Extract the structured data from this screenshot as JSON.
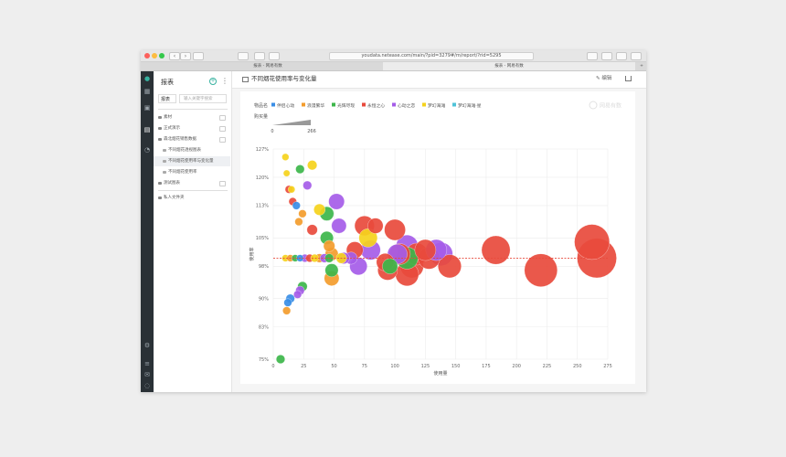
{
  "browser": {
    "url": "youdata.netease.com/main/?pid=3279#/m/report/?rid=5295",
    "tabs": [
      {
        "label": "报表 - 网易有数",
        "active": false
      },
      {
        "label": "报表 - 网易有数",
        "active": true
      }
    ]
  },
  "sidebar": {
    "title": "报表",
    "select_label": "报表",
    "search_placeholder": "输入关键字搜索",
    "items": [
      {
        "label": "素材",
        "type": "folder",
        "level": 0
      },
      {
        "label": "正式演示",
        "type": "folder",
        "level": 0
      },
      {
        "label": "森北烟花销售数据",
        "type": "folder",
        "level": 0
      },
      {
        "label": "不同烟花透视图表",
        "type": "report",
        "level": 1
      },
      {
        "label": "不同烟花使用率与变化量",
        "type": "report",
        "level": 1,
        "active": true
      },
      {
        "label": "不同烟花使用率",
        "type": "report",
        "level": 1
      },
      {
        "label": "测试图表",
        "type": "folder",
        "level": 0
      },
      {
        "label": "私人文件夹",
        "type": "folder",
        "level": 0
      }
    ]
  },
  "main": {
    "title": "不同烟花使用率与变化量",
    "edit_label": "编辑",
    "watermark": "网易有数"
  },
  "chart_data": {
    "type": "scatter",
    "legend_title": "物品名",
    "legend": [
      {
        "name": "伴侣心动",
        "color": "#3a8ee6"
      },
      {
        "name": "浪漫繁华",
        "color": "#f39c2c"
      },
      {
        "name": "光辉尽现",
        "color": "#3cb64a"
      },
      {
        "name": "永恒之心",
        "color": "#e84a3c"
      },
      {
        "name": "心动之恋",
        "color": "#a55ce8"
      },
      {
        "name": "梦幻海滩",
        "color": "#f5d21c"
      },
      {
        "name": "梦幻海滩·星",
        "color": "#4fc3d8"
      }
    ],
    "size_legend": {
      "label": "购买量",
      "min": 0,
      "max": 266
    },
    "xlabel": "使用量",
    "ylabel": "使用率",
    "xlim": [
      0,
      275
    ],
    "ylim": [
      75,
      127
    ],
    "x_ticks": [
      "0",
      "25",
      "50",
      "75",
      "100",
      "125",
      "150",
      "175",
      "200",
      "225",
      "250",
      "275"
    ],
    "y_ticks": [
      "75%",
      "83%",
      "90%",
      "98%",
      "105%",
      "113%",
      "120%",
      "127%"
    ],
    "reference_line": 100,
    "grid": true,
    "points": [
      {
        "s": 0,
        "x": 14,
        "y": 90,
        "r": 2
      },
      {
        "s": 0,
        "x": 12,
        "y": 89,
        "r": 1.8
      },
      {
        "s": 1,
        "x": 11,
        "y": 87,
        "r": 1.8
      },
      {
        "s": 2,
        "x": 6,
        "y": 75,
        "r": 2
      },
      {
        "s": 2,
        "x": 24,
        "y": 93,
        "r": 2.2
      },
      {
        "s": 4,
        "x": 22,
        "y": 92,
        "r": 2
      },
      {
        "s": 4,
        "x": 20,
        "y": 91,
        "r": 1.8
      },
      {
        "s": 3,
        "x": 13,
        "y": 117,
        "r": 1.8
      },
      {
        "s": 3,
        "x": 16,
        "y": 114,
        "r": 1.8
      },
      {
        "s": 5,
        "x": 10,
        "y": 125,
        "r": 1.6
      },
      {
        "s": 5,
        "x": 11,
        "y": 121,
        "r": 1.5
      },
      {
        "s": 5,
        "x": 32,
        "y": 123,
        "r": 2.2
      },
      {
        "s": 2,
        "x": 22,
        "y": 122,
        "r": 2
      },
      {
        "s": 5,
        "x": 15,
        "y": 117,
        "r": 1.6
      },
      {
        "s": 4,
        "x": 28,
        "y": 118,
        "r": 2
      },
      {
        "s": 1,
        "x": 24,
        "y": 111,
        "r": 1.8
      },
      {
        "s": 1,
        "x": 21,
        "y": 109,
        "r": 1.8
      },
      {
        "s": 0,
        "x": 19,
        "y": 113,
        "r": 1.8
      },
      {
        "s": 3,
        "x": 32,
        "y": 107,
        "r": 2.4
      },
      {
        "s": 5,
        "x": 38,
        "y": 112,
        "r": 2.6
      },
      {
        "s": 2,
        "x": 44,
        "y": 111,
        "r": 3.2
      },
      {
        "s": 4,
        "x": 52,
        "y": 114,
        "r": 3.6
      },
      {
        "s": 4,
        "x": 54,
        "y": 108,
        "r": 3.4
      },
      {
        "s": 2,
        "x": 44,
        "y": 105,
        "r": 3
      },
      {
        "s": 1,
        "x": 46,
        "y": 103,
        "r": 2.6
      },
      {
        "s": 1,
        "x": 48,
        "y": 101,
        "r": 3
      },
      {
        "s": 2,
        "x": 48,
        "y": 97,
        "r": 3
      },
      {
        "s": 1,
        "x": 48,
        "y": 95,
        "r": 3.4
      },
      {
        "s": 5,
        "x": 78,
        "y": 105,
        "r": 4.2
      },
      {
        "s": 4,
        "x": 80,
        "y": 102,
        "r": 4.5
      },
      {
        "s": 3,
        "x": 75,
        "y": 108,
        "r": 4.5
      },
      {
        "s": 3,
        "x": 84,
        "y": 108,
        "r": 3.5
      },
      {
        "s": 3,
        "x": 67,
        "y": 102,
        "r": 3.8
      },
      {
        "s": 4,
        "x": 70,
        "y": 98,
        "r": 4
      },
      {
        "s": 3,
        "x": 100,
        "y": 107,
        "r": 4.8
      },
      {
        "s": 2,
        "x": 96,
        "y": 98,
        "r": 3.5
      },
      {
        "s": 3,
        "x": 92,
        "y": 99,
        "r": 4
      },
      {
        "s": 3,
        "x": 104,
        "y": 101,
        "r": 4.8
      },
      {
        "s": 4,
        "x": 102,
        "y": 101,
        "r": 4.5
      },
      {
        "s": 4,
        "x": 110,
        "y": 103,
        "r": 5
      },
      {
        "s": 4,
        "x": 134,
        "y": 102,
        "r": 4.8
      },
      {
        "s": 4,
        "x": 138,
        "y": 101,
        "r": 5.3
      },
      {
        "s": 3,
        "x": 118,
        "y": 101,
        "r": 5
      },
      {
        "s": 3,
        "x": 125,
        "y": 102,
        "r": 4.8
      },
      {
        "s": 3,
        "x": 128,
        "y": 100,
        "r": 5
      },
      {
        "s": 3,
        "x": 114,
        "y": 98,
        "r": 5.3
      },
      {
        "s": 3,
        "x": 110,
        "y": 96,
        "r": 5.3
      },
      {
        "s": 3,
        "x": 145,
        "y": 98,
        "r": 5.3
      },
      {
        "s": 2,
        "x": 110,
        "y": 100,
        "r": 5
      },
      {
        "s": 3,
        "x": 94,
        "y": 97,
        "r": 4.5
      },
      {
        "s": 3,
        "x": 183,
        "y": 102,
        "r": 6.5
      },
      {
        "s": 3,
        "x": 220,
        "y": 97,
        "r": 7.5
      },
      {
        "s": 3,
        "x": 262,
        "y": 104,
        "r": 8
      },
      {
        "s": 3,
        "x": 266,
        "y": 100,
        "r": 9
      },
      {
        "s": 5,
        "x": 10,
        "y": 100,
        "r": 1.6
      },
      {
        "s": 1,
        "x": 14,
        "y": 100,
        "r": 1.6
      },
      {
        "s": 2,
        "x": 18,
        "y": 100,
        "r": 1.6
      },
      {
        "s": 0,
        "x": 22,
        "y": 100,
        "r": 1.6
      },
      {
        "s": 4,
        "x": 26,
        "y": 100,
        "r": 1.8
      },
      {
        "s": 3,
        "x": 30,
        "y": 100,
        "r": 1.8
      },
      {
        "s": 5,
        "x": 34,
        "y": 100,
        "r": 1.8
      },
      {
        "s": 1,
        "x": 38,
        "y": 100,
        "r": 2
      },
      {
        "s": 4,
        "x": 42,
        "y": 100,
        "r": 2
      },
      {
        "s": 2,
        "x": 46,
        "y": 100,
        "r": 2
      },
      {
        "s": 5,
        "x": 56,
        "y": 100,
        "r": 2.4
      },
      {
        "s": 4,
        "x": 58,
        "y": 100,
        "r": 2.6
      },
      {
        "s": 4,
        "x": 64,
        "y": 100,
        "r": 2.8
      }
    ]
  }
}
